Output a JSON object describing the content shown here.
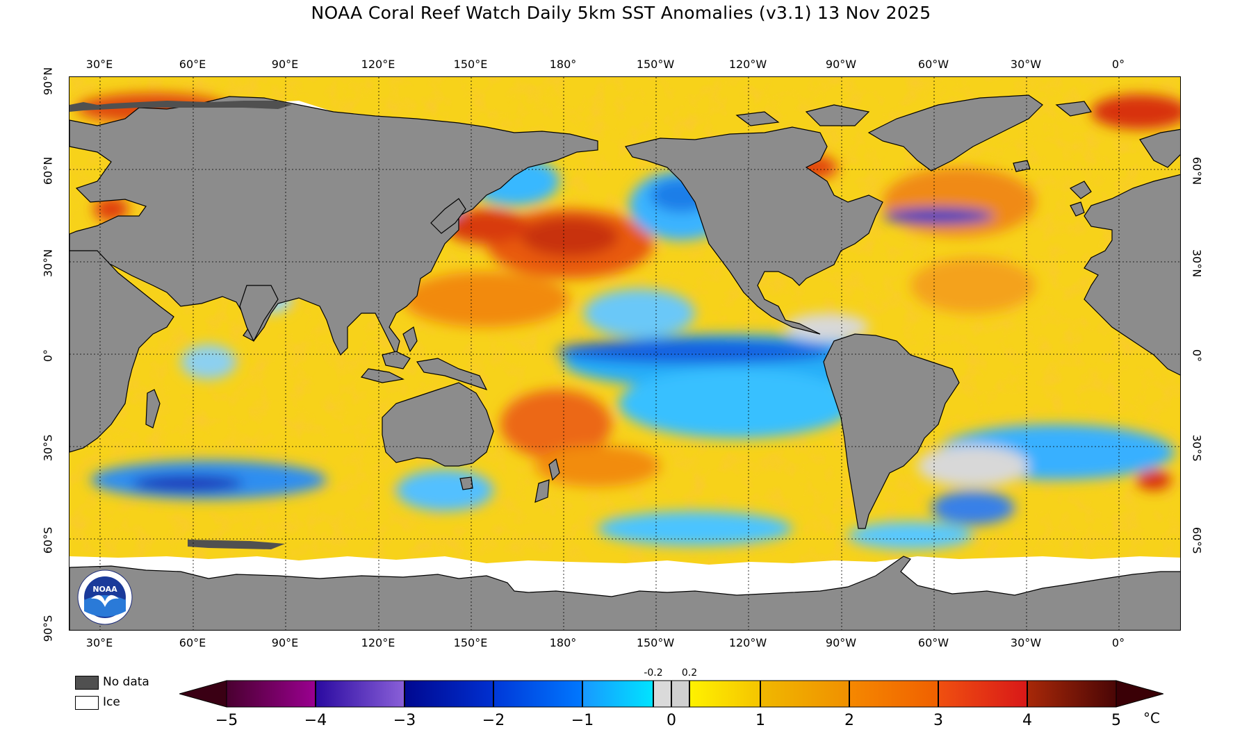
{
  "title": "NOAA Coral Reef Watch Daily 5km SST Anomalies  (v3.1)   13 Nov 2025",
  "map": {
    "longitude_labels": [
      "30°E",
      "60°E",
      "90°E",
      "120°E",
      "150°E",
      "180°",
      "150°W",
      "120°W",
      "90°W",
      "60°W",
      "30°W",
      "0°"
    ],
    "latitude_labels_left": [
      "90°N",
      "60°N",
      "30°N",
      "0°",
      "30°S",
      "60°S",
      "90°S"
    ],
    "latitude_labels_right": [
      "60°N",
      "30°N",
      "0°",
      "30°S",
      "60°S"
    ],
    "colors": {
      "land": "#8c8c8c",
      "no_data": "#505050",
      "ice": "#ffffff",
      "coastline": "#000000"
    }
  },
  "legend": {
    "no_data_label": "No data",
    "ice_label": "Ice",
    "no_data_color": "#505050",
    "ice_color": "#ffffff"
  },
  "colorbar": {
    "ticks": [
      "−5",
      "−4",
      "−3",
      "−2",
      "−1",
      "0",
      "1",
      "2",
      "3",
      "4",
      "5"
    ],
    "inner_ticks": [
      "-0.2",
      "0.2"
    ],
    "unit": "°C",
    "range": [
      -5,
      5
    ],
    "colors": [
      "#55003c",
      "#6a0a7a",
      "#2a1ea0",
      "#0020a8",
      "#0040d8",
      "#0080ff",
      "#00c0f0",
      "#d8d8d8",
      "#f8e800",
      "#f5c000",
      "#f59a00",
      "#f56a00",
      "#e62010",
      "#9a1a08",
      "#3a0006"
    ]
  },
  "logo_text": "NOAA"
}
